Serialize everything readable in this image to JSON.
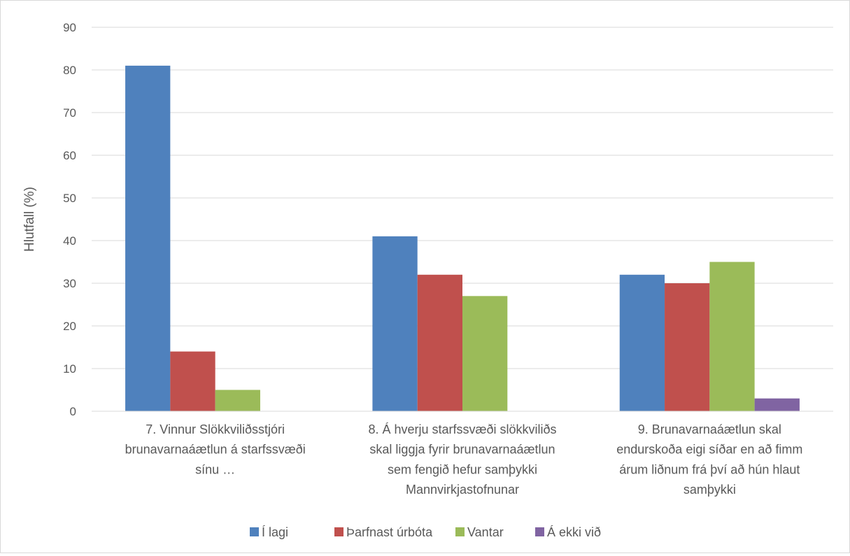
{
  "chart_data": {
    "type": "bar",
    "ylabel": "Hlutfall (%)",
    "ylim": [
      0,
      90
    ],
    "yticks": [
      0,
      10,
      20,
      30,
      40,
      50,
      60,
      70,
      80,
      90
    ],
    "grid": true,
    "legend_position": "bottom",
    "categories": [
      [
        "7. Vinnur Slökkviliðsstjóri",
        "brunavarnaáætlun á starfssvæði",
        "sínu  …"
      ],
      [
        "8. Á hverju starfssvæði slökkviliðs",
        "skal liggja fyrir brunavarnaáætlun",
        "sem fengið hefur samþykki",
        "Mannvirkjastofnunar"
      ],
      [
        "9. Brunavarnaáætlun skal",
        "endurskoða eigi síðar en að fimm",
        "árum liðnum frá því að hún hlaut",
        "samþykki"
      ]
    ],
    "series": [
      {
        "name": "Í lagi",
        "color": "#4f81bd",
        "values": [
          81,
          41,
          32
        ]
      },
      {
        "name": "Þarfnast úrbóta",
        "color": "#c0504d",
        "values": [
          14,
          32,
          30
        ]
      },
      {
        "name": "Vantar",
        "color": "#9bbb59",
        "values": [
          5,
          27,
          35
        ]
      },
      {
        "name": "Á ekki við",
        "color": "#8064a2",
        "values": [
          0,
          0,
          3
        ]
      }
    ]
  }
}
